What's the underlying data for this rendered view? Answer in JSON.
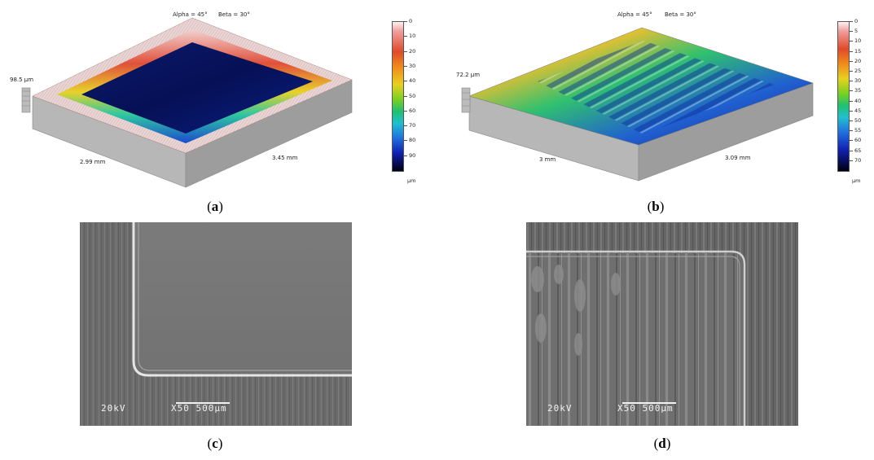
{
  "panel_a": {
    "caption_letter": "a",
    "view_alpha": "Alpha = 45°",
    "view_beta": "Beta = 30°",
    "height_label": "98.5 µm",
    "x_dim": "2.99 mm",
    "y_dim": "3.45 mm",
    "colorbar_ticks": [
      "0",
      "10",
      "20",
      "30",
      "40",
      "50",
      "60",
      "70",
      "80",
      "90"
    ],
    "colorbar_unit": "µm"
  },
  "panel_b": {
    "caption_letter": "b",
    "view_alpha": "Alpha = 45°",
    "view_beta": "Beta = 30°",
    "height_label": "72.2 µm",
    "x_dim": "3 mm",
    "y_dim": "3.09 mm",
    "colorbar_ticks": [
      "0",
      "5",
      "10",
      "15",
      "20",
      "25",
      "30",
      "35",
      "40",
      "45",
      "50",
      "55",
      "60",
      "65",
      "70"
    ],
    "colorbar_unit": "µm"
  },
  "panel_c": {
    "caption_letter": "c",
    "sem_voltage": "20kV",
    "sem_scale": "X50 500µm"
  },
  "panel_d": {
    "caption_letter": "d",
    "sem_voltage": "20kV",
    "sem_scale": "X50 500µm"
  },
  "colors": {
    "surface_side": "#a9a9a9",
    "sem_background": "#6e6e6e"
  }
}
